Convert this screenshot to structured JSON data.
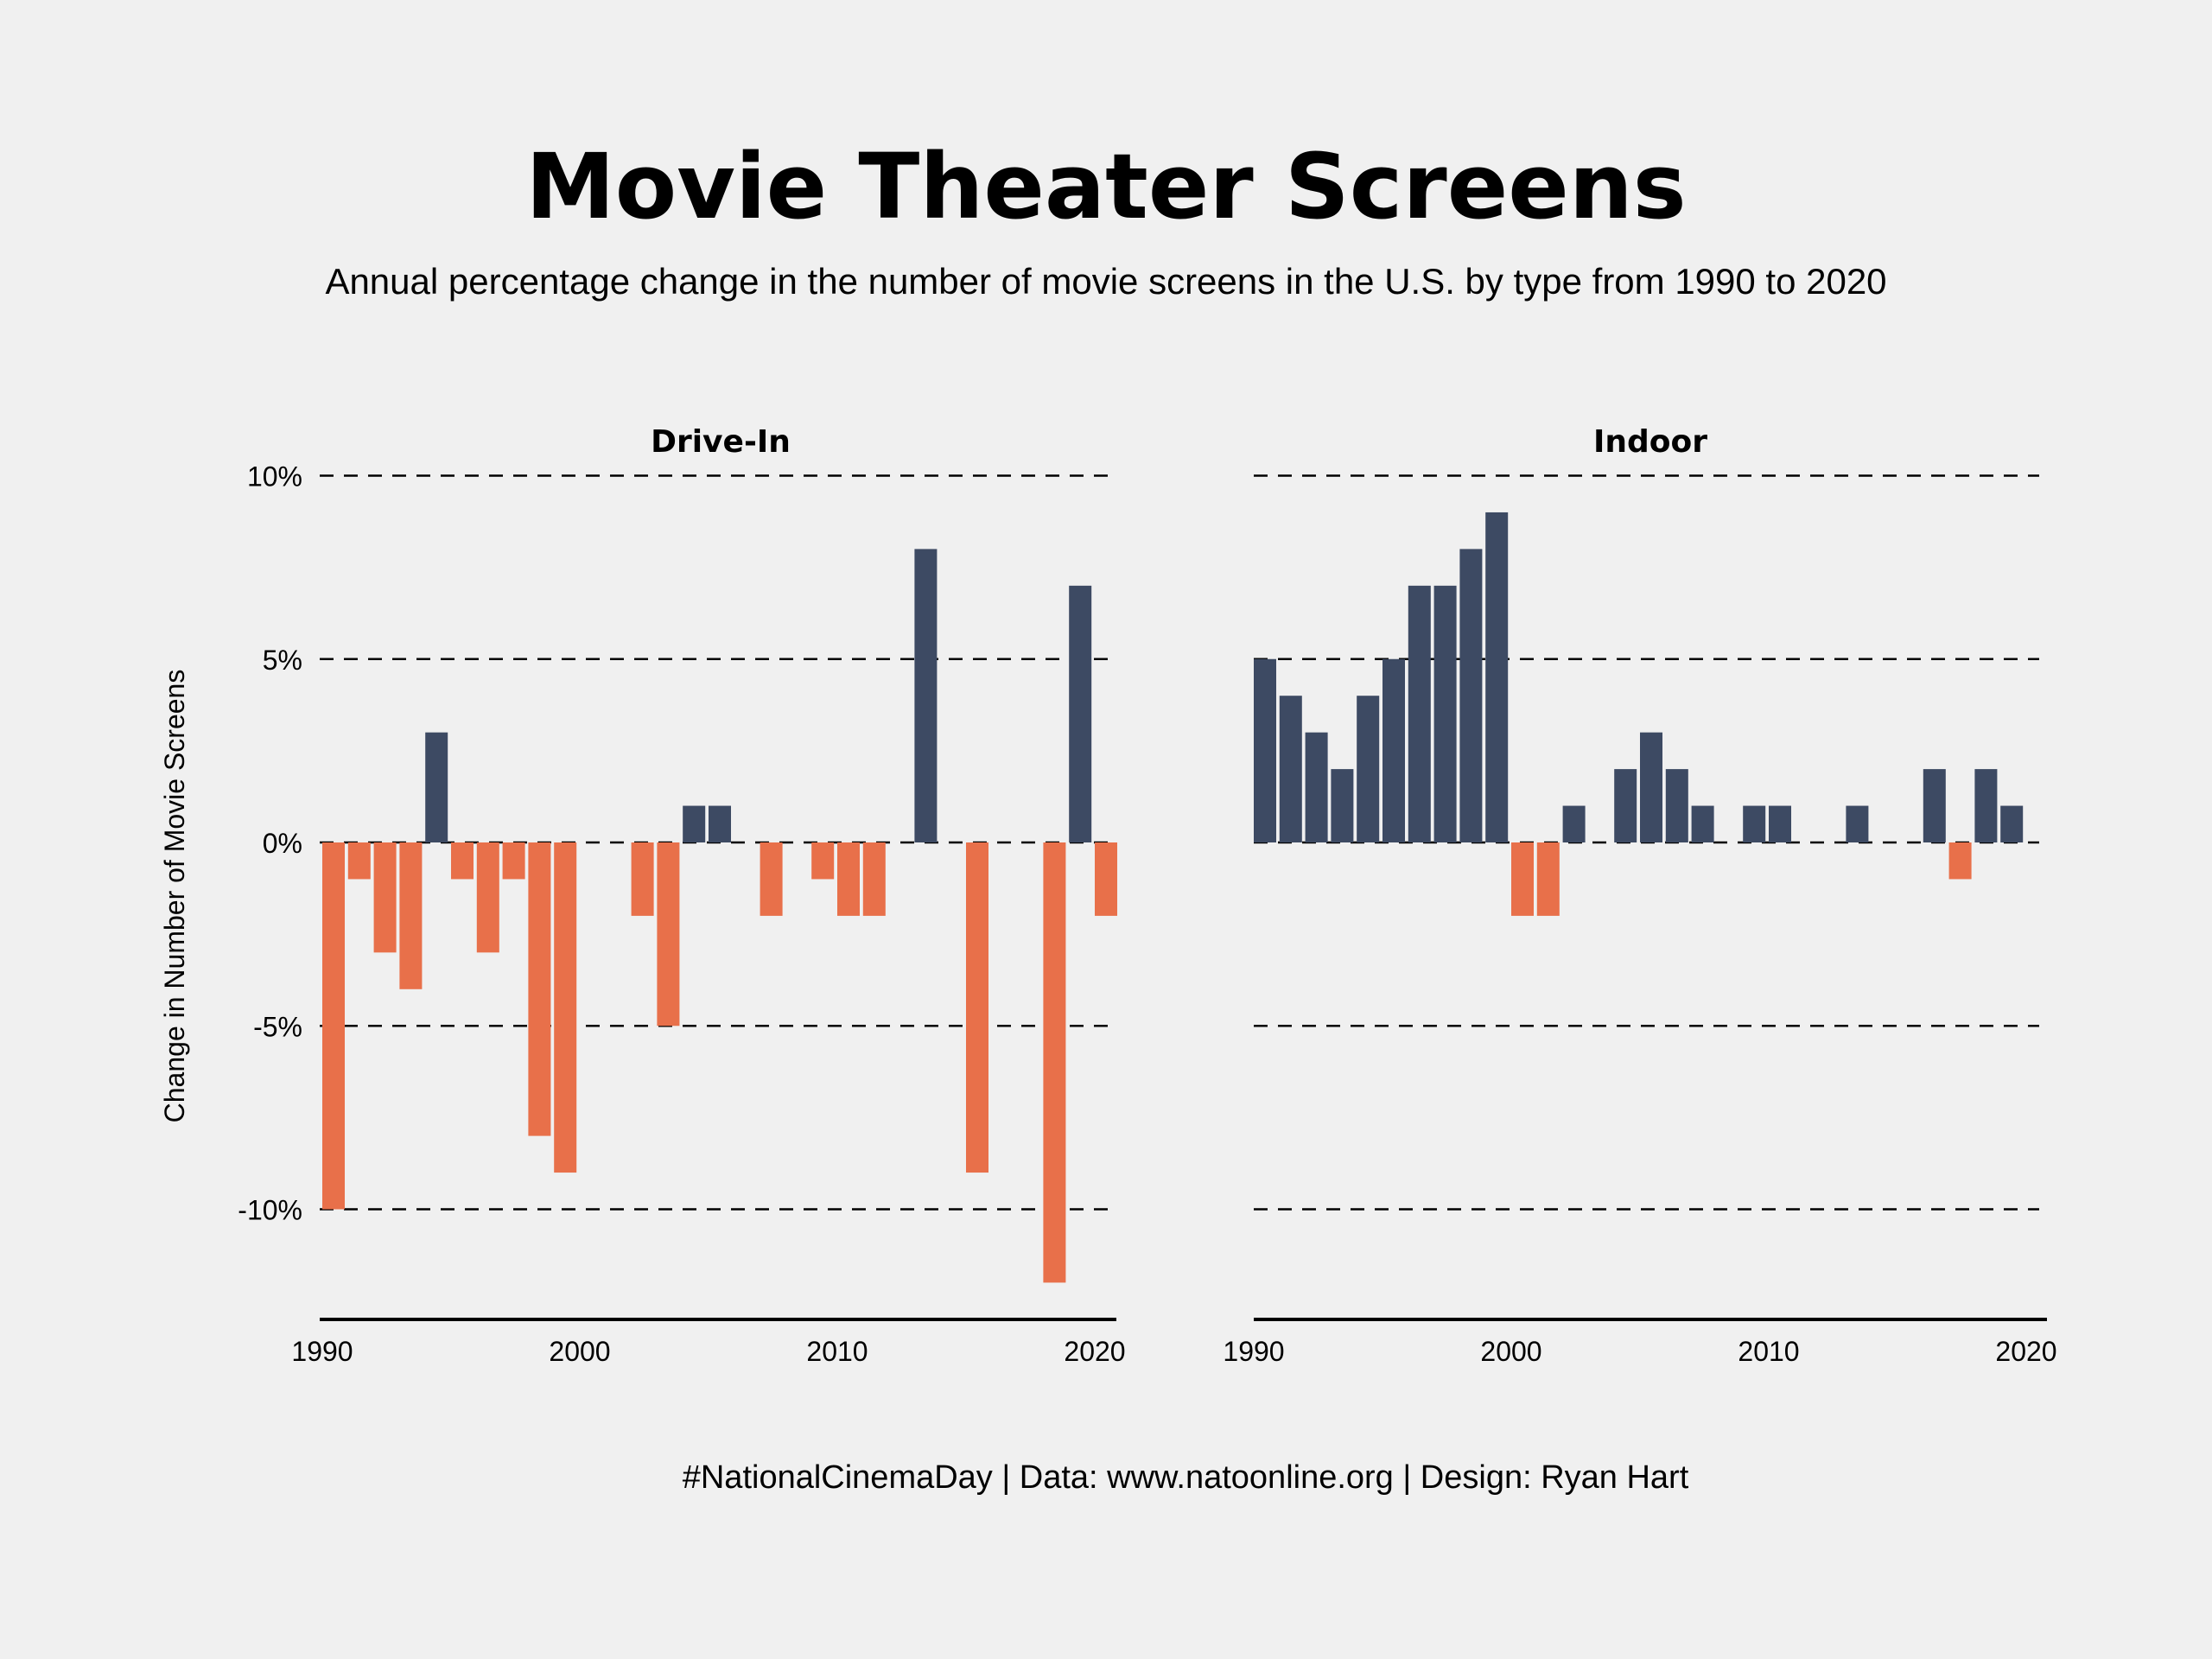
{
  "title": "Movie Theater Screens",
  "subtitle": "Annual percentage change in the number of movie screens in the U.S. by type from 1990 to 2020",
  "caption": "#NationalCinemaDay | Data: www.natoonline.org | Design: Ryan Hart",
  "colors": {
    "background": "#f0f0f0",
    "positive": "#3d4a63",
    "negative": "#e8704a",
    "grid": "#000000",
    "text": "#000000"
  },
  "chart_data": {
    "type": "bar",
    "facet_by": "type",
    "ylabel": "Change in Number of Movie Screens",
    "xlabel": "",
    "ylim": [
      -13,
      10
    ],
    "yticks": [
      10,
      5,
      0,
      -5,
      -10
    ],
    "ytick_labels": [
      "10%",
      "5%",
      "0%",
      "-5%",
      "-10%"
    ],
    "xlim": [
      1990,
      2020
    ],
    "xticks": [
      1990,
      2000,
      2010,
      2020
    ],
    "xtick_labels": [
      "1990",
      "2000",
      "2010",
      "2020"
    ],
    "grid": "horizontal dashed",
    "x": [
      1990,
      1991,
      1992,
      1993,
      1994,
      1995,
      1996,
      1997,
      1998,
      1999,
      2000,
      2001,
      2002,
      2003,
      2004,
      2005,
      2006,
      2007,
      2008,
      2009,
      2010,
      2011,
      2012,
      2013,
      2014,
      2015,
      2016,
      2017,
      2018,
      2019,
      2020
    ],
    "panels": [
      {
        "name": "Drive-In",
        "values": [
          -10,
          -1,
          -3,
          -4,
          3,
          -1,
          -3,
          -1,
          -8,
          -9,
          0,
          0,
          -2,
          -5,
          1,
          1,
          0,
          -2,
          0,
          -1,
          -2,
          -2,
          0,
          8,
          0,
          -9,
          0,
          0,
          -12,
          7,
          -2
        ]
      },
      {
        "name": "Indoor",
        "values": [
          5,
          4,
          3,
          2,
          4,
          5,
          7,
          7,
          8,
          9,
          -2,
          -2,
          1,
          0,
          2,
          3,
          2,
          1,
          0,
          1,
          1,
          0,
          0,
          1,
          0,
          0,
          2,
          -1,
          2,
          1,
          0
        ]
      }
    ]
  }
}
